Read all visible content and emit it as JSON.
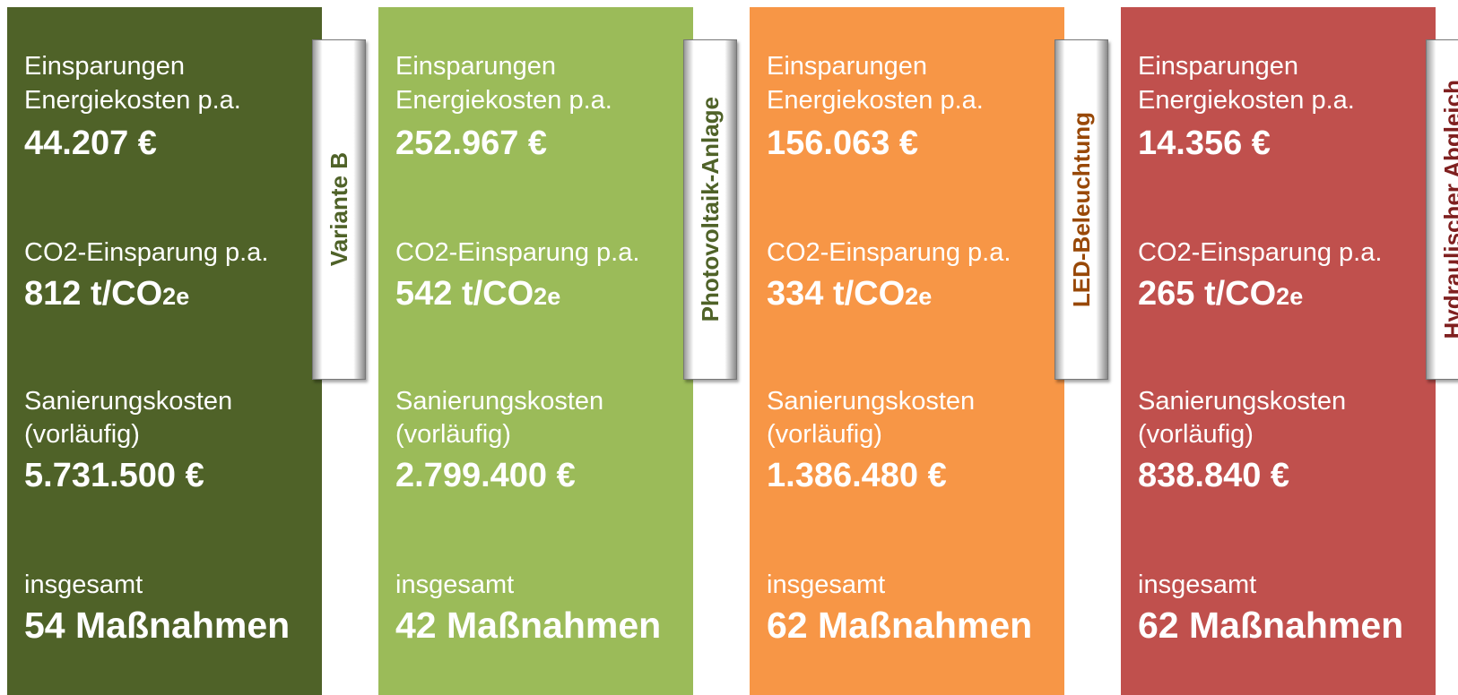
{
  "cards": [
    {
      "tab": "Variante B",
      "color": "#4f6228",
      "tab_color": "#4f6228",
      "savings_label": [
        "Einsparungen",
        "Energiekosten p.a."
      ],
      "savings_value": "44.207 €",
      "co2_label": "CO2-Einsparung p.a.",
      "co2_value": "812 t/CO",
      "co2_sub": "2e",
      "cost_label": [
        "Sanierungskosten",
        "(vorläufig)"
      ],
      "cost_value": "5.731.500 €",
      "total_label": "insgesamt",
      "total_value": "54 Maßnahmen"
    },
    {
      "tab": "Photovoltaik-Anlage",
      "color": "#9bbb59",
      "tab_color": "#4f6228",
      "savings_label": [
        "Einsparungen",
        "Energiekosten p.a."
      ],
      "savings_value": "252.967 €",
      "co2_label": "CO2-Einsparung p.a.",
      "co2_value": "542 t/CO",
      "co2_sub": "2e",
      "cost_label": [
        "Sanierungskosten",
        "(vorläufig)"
      ],
      "cost_value": "2.799.400 €",
      "total_label": "insgesamt",
      "total_value": "42 Maßnahmen"
    },
    {
      "tab": "LED-Beleuchtung",
      "color": "#f79646",
      "tab_color": "#984807",
      "savings_label": [
        "Einsparungen",
        "Energiekosten p.a."
      ],
      "savings_value": "156.063 €",
      "co2_label": "CO2-Einsparung p.a.",
      "co2_value": "334 t/CO",
      "co2_sub": "2e",
      "cost_label": [
        "Sanierungskosten",
        "(vorläufig)"
      ],
      "cost_value": "1.386.480 €",
      "total_label": "insgesamt",
      "total_value": "62 Maßnahmen"
    },
    {
      "tab": "Hydraulischer Abgleich",
      "color": "#c0504d",
      "tab_color": "#7f1f1f",
      "savings_label": [
        "Einsparungen",
        "Energiekosten p.a."
      ],
      "savings_value": "14.356 €",
      "co2_label": "CO2-Einsparung p.a.",
      "co2_value": "265 t/CO",
      "co2_sub": "2e",
      "cost_label": [
        "Sanierungskosten",
        "(vorläufig)"
      ],
      "cost_value": "838.840 €",
      "total_label": "insgesamt",
      "total_value": "62 Maßnahmen"
    }
  ]
}
